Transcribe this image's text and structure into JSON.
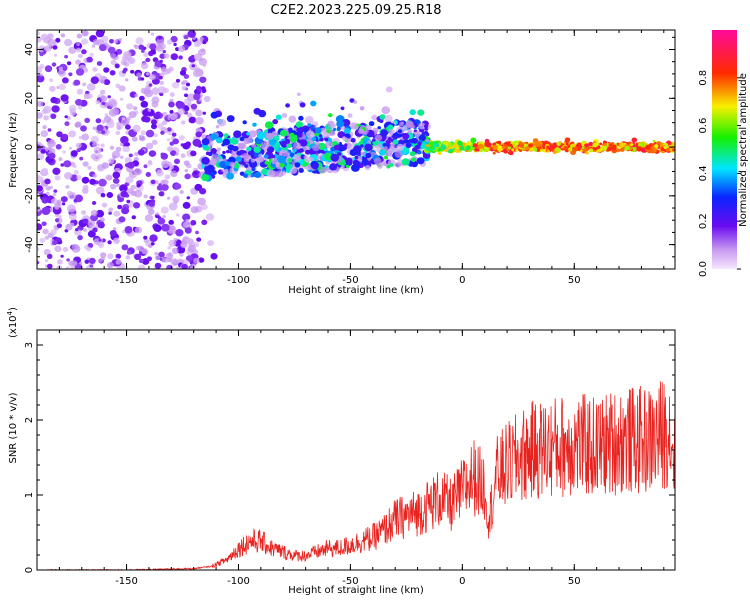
{
  "title": "C2E2.2023.225.09.25.R18",
  "colors": {
    "snr_line": "#e8231f",
    "weak_dots": "#d9b3f5",
    "mid_dots": "#7b18e8",
    "axes": "#000000"
  },
  "chart_data": [
    {
      "type": "heatmap",
      "xlabel": "Height of straight line (km)",
      "ylabel": "Frequency (Hz)",
      "xlim": [
        -190,
        95
      ],
      "ylim": [
        -50,
        48
      ],
      "xticks": [
        "-150",
        "-100",
        "-50",
        "0",
        "50"
      ],
      "xtick_values": [
        -150,
        -100,
        -50,
        0,
        50
      ],
      "yticks": [
        "-40",
        "-20",
        "0",
        "20",
        "40"
      ],
      "ytick_values": [
        -40,
        -20,
        0,
        20,
        40
      ],
      "colorbar": {
        "label": "Normalized spectral amplitude",
        "ticks": [
          "0.0",
          "0.2",
          "0.4",
          "0.6",
          "0.8"
        ],
        "tick_values": [
          0.0,
          0.2,
          0.4,
          0.6,
          0.8
        ],
        "range": [
          0,
          1
        ],
        "colormap": "rainbow (purple → blue → cyan → green → yellow → red → magenta)"
      },
      "regions": [
        {
          "x": [
            -190,
            -115
          ],
          "freq": [
            -50,
            48
          ],
          "amplitude": 0.05,
          "note": "scattered noise"
        },
        {
          "x": [
            -115,
            -15
          ],
          "freq": [
            -15,
            10
          ],
          "amplitude": 0.2,
          "note": "clustered echoes, rising trend"
        },
        {
          "x": [
            -15,
            95
          ],
          "freq": [
            -2,
            2
          ],
          "amplitude": 0.8,
          "note": "strong narrow band near 0 Hz"
        }
      ]
    },
    {
      "type": "line",
      "xlabel": "Height of straight line (km)",
      "ylabel": "SNR (10 * v/v)",
      "multiplier_label": "(x10",
      "multiplier_exp": "4",
      "multiplier_close": ")",
      "xlim": [
        -190,
        95
      ],
      "ylim": [
        0,
        3.2
      ],
      "xticks": [
        "-150",
        "-100",
        "-50",
        "0",
        "50"
      ],
      "xtick_values": [
        -150,
        -100,
        -50,
        0,
        50
      ],
      "yticks": [
        "0",
        "1",
        "2",
        "3"
      ],
      "ytick_values": [
        0,
        1,
        2,
        3
      ],
      "series": [
        {
          "x": [
            -190,
            -150,
            -120,
            -112,
            -105,
            -100,
            -95,
            -90,
            -85,
            -80,
            -75,
            -70,
            -65,
            -60,
            -55,
            -50,
            -45,
            -40,
            -35,
            -30,
            -25,
            -20,
            -15,
            -10,
            -5,
            0,
            5,
            10,
            12,
            15,
            20,
            25,
            30,
            40,
            50,
            60,
            70,
            80,
            85,
            90,
            92,
            95
          ],
          "values": [
            0.0,
            0.0,
            0.02,
            0.05,
            0.15,
            0.3,
            0.4,
            0.4,
            0.3,
            0.25,
            0.2,
            0.2,
            0.25,
            0.3,
            0.3,
            0.35,
            0.4,
            0.45,
            0.55,
            0.7,
            0.75,
            0.8,
            0.9,
            1.0,
            0.9,
            1.1,
            1.3,
            1.15,
            0.7,
            1.3,
            1.45,
            1.55,
            1.65,
            1.7,
            1.75,
            1.7,
            1.8,
            1.8,
            1.8,
            1.9,
            2.0,
            1.6
          ]
        }
      ]
    }
  ]
}
